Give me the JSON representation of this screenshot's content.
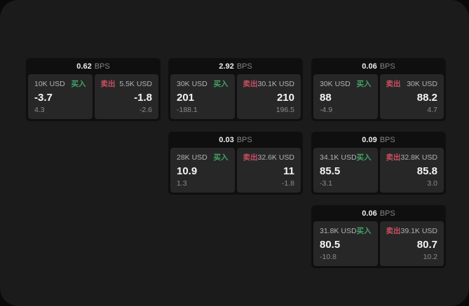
{
  "colors": {
    "surface_bg": "#1b1b1b",
    "outer_bg": "#0a0a0a",
    "card_bg": "#0f0f0f",
    "panel_bg": "#272727",
    "buy_green": "#43a269",
    "sell_red": "#c94f61"
  },
  "labels": {
    "bps_unit": "BPS",
    "buy": "买入",
    "sell": "卖出"
  },
  "cards": [
    {
      "grid": {
        "row": 0,
        "col": 0
      },
      "bps": "0.62",
      "buy": {
        "amount": "10K USD",
        "price": "-3.7",
        "delta": "4.3"
      },
      "sell": {
        "amount": "5.5K USD",
        "price": "-1.8",
        "delta": "-2.6"
      }
    },
    {
      "grid": {
        "row": 0,
        "col": 1
      },
      "bps": "2.92",
      "buy": {
        "amount": "30K USD",
        "price": "201",
        "delta": "-188.1"
      },
      "sell": {
        "amount": "30.1K USD",
        "price": "210",
        "delta": "196.5"
      }
    },
    {
      "grid": {
        "row": 0,
        "col": 2
      },
      "bps": "0.06",
      "buy": {
        "amount": "30K USD",
        "price": "88",
        "delta": "-4.9"
      },
      "sell": {
        "amount": "30K USD",
        "price": "88.2",
        "delta": "4.7"
      }
    },
    {
      "grid": {
        "row": 1,
        "col": 1
      },
      "bps": "0.03",
      "buy": {
        "amount": "28K USD",
        "price": "10.9",
        "delta": "1.3"
      },
      "sell": {
        "amount": "32.6K USD",
        "price": "11",
        "delta": "-1.8"
      }
    },
    {
      "grid": {
        "row": 1,
        "col": 2
      },
      "bps": "0.09",
      "buy": {
        "amount": "34.1K USD",
        "price": "85.5",
        "delta": "-3.1"
      },
      "sell": {
        "amount": "32.8K USD",
        "price": "85.8",
        "delta": "3.0"
      }
    },
    {
      "grid": {
        "row": 2,
        "col": 2
      },
      "bps": "0.06",
      "buy": {
        "amount": "31.8K USD",
        "price": "80.5",
        "delta": "-10.8"
      },
      "sell": {
        "amount": "39.1K USD",
        "price": "80.7",
        "delta": "10.2"
      }
    }
  ]
}
